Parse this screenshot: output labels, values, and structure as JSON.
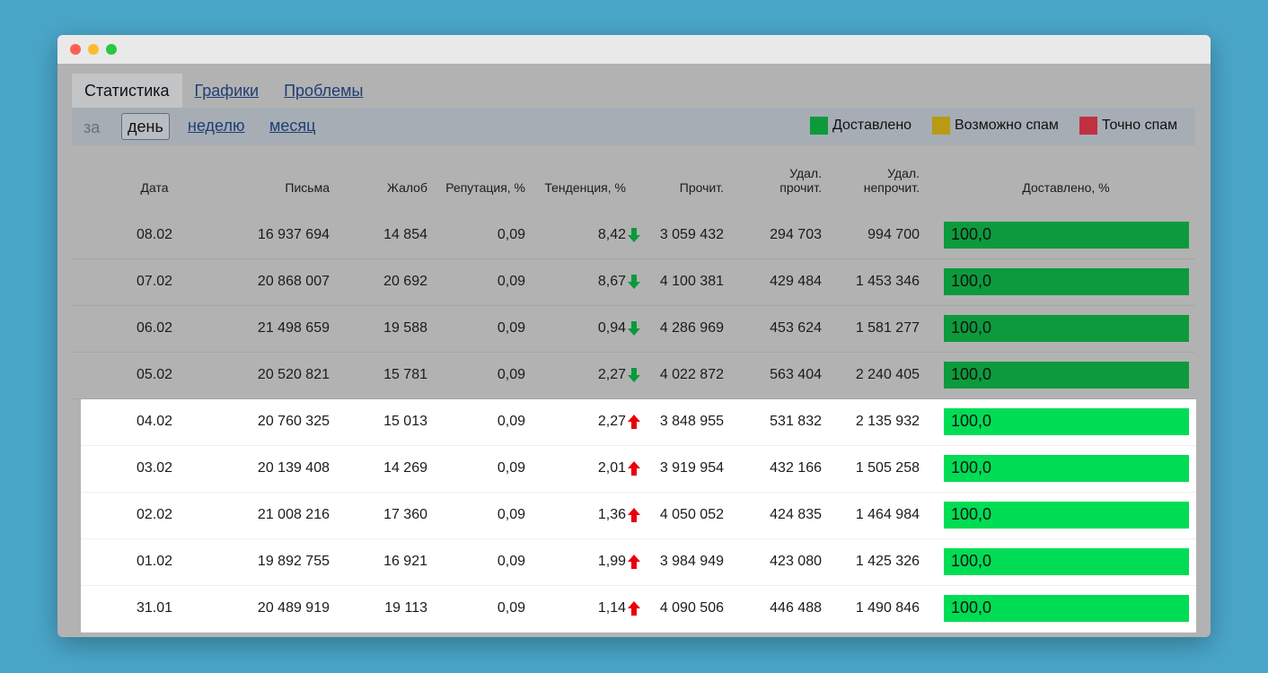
{
  "tabs": [
    "Статистика",
    "Графики",
    "Проблемы"
  ],
  "period": {
    "label": "за",
    "options": [
      "день",
      "неделю",
      "месяц"
    ]
  },
  "legend": [
    "Доставлено",
    "Возможно спам",
    "Точно спам"
  ],
  "table": {
    "headers": [
      "Дата",
      "Письма",
      "Жалоб",
      "Репутация, %",
      "Тенденция, %",
      "Прочит.",
      "Удал. прочит.",
      "Удал. непрочит.",
      "Доставлено, %"
    ],
    "rows": [
      [
        "08.02",
        "16 937 694",
        "14 854",
        "0,09",
        "8,42",
        "3 059 432",
        "294 703",
        "994 700",
        "100,0"
      ],
      [
        "07.02",
        "20 868 007",
        "20 692",
        "0,09",
        "8,67",
        "4 100 381",
        "429 484",
        "1 453 346",
        "100,0"
      ],
      [
        "06.02",
        "21 498 659",
        "19 588",
        "0,09",
        "0,94",
        "4 286 969",
        "453 624",
        "1 581 277",
        "100,0"
      ],
      [
        "05.02",
        "20 520 821",
        "15 781",
        "0,09",
        "2,27",
        "4 022 872",
        "563 404",
        "2 240 405",
        "100,0"
      ],
      [
        "04.02",
        "20 760 325",
        "15 013",
        "0,09",
        "2,27",
        "3 848 955",
        "531 832",
        "2 135 932",
        "100,0"
      ],
      [
        "03.02",
        "20 139 408",
        "14 269",
        "0,09",
        "2,01",
        "3 919 954",
        "432 166",
        "1 505 258",
        "100,0"
      ],
      [
        "02.02",
        "21 008 216",
        "17 360",
        "0,09",
        "1,36",
        "4 050 052",
        "424 835",
        "1 464 984",
        "100,0"
      ],
      [
        "01.02",
        "19 892 755",
        "16 921",
        "0,09",
        "1,99",
        "3 984 949",
        "423 080",
        "1 425 326",
        "100,0"
      ],
      [
        "31.01",
        "20 489 919",
        "19 113",
        "0,09",
        "1,14",
        "4 090 506",
        "446 488",
        "1 490 846",
        "100,0"
      ]
    ],
    "trend_direction": [
      "down",
      "down",
      "down",
      "down",
      "up",
      "up",
      "up",
      "up",
      "up"
    ]
  }
}
